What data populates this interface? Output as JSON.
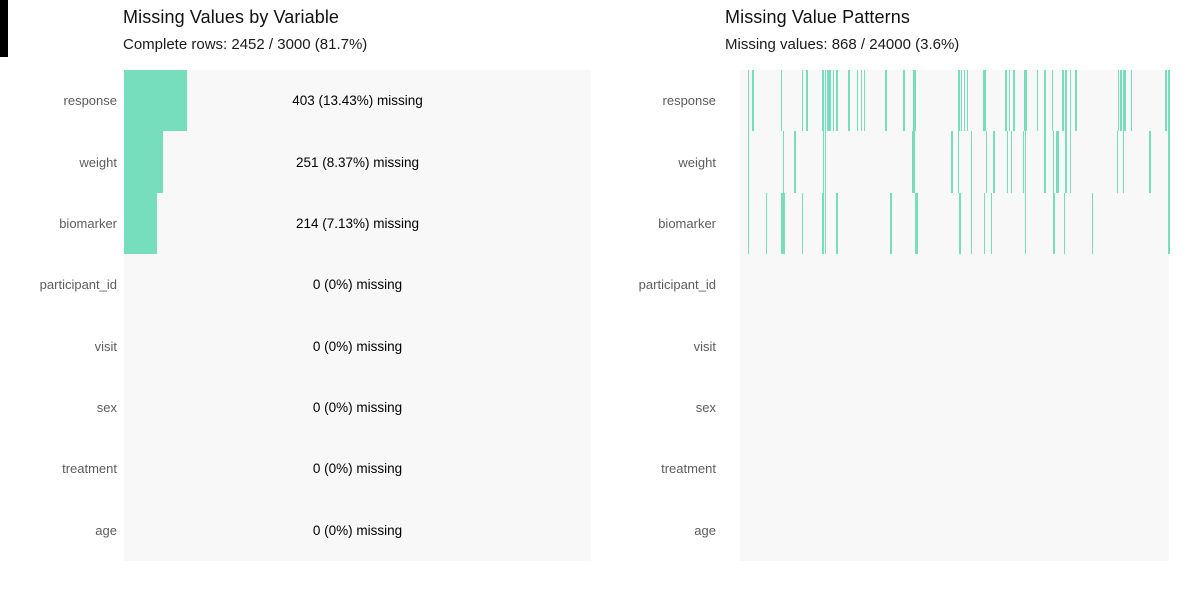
{
  "colors": {
    "accent_teal": "#77debd",
    "plot_background": "#f8f8f8",
    "row_label_gray": "#5c5c5c",
    "title_black": "#111111",
    "artifact_black": "#000000"
  },
  "left_panel": {
    "title": "Missing Values by Variable",
    "subtitle": "Complete rows: 2452 / 3000 (81.7%)"
  },
  "right_panel": {
    "title": "Missing Value Patterns",
    "subtitle": "Missing values: 868 / 24000 (3.6%)"
  },
  "chart_data": [
    {
      "type": "bar",
      "orientation": "horizontal",
      "title": "Missing Values by Variable",
      "subtitle": "Complete rows: 2452 / 3000 (81.7%)",
      "categories": [
        "response",
        "weight",
        "biomarker",
        "participant_id",
        "visit",
        "sex",
        "treatment",
        "age"
      ],
      "missing_counts": [
        403,
        251,
        214,
        0,
        0,
        0,
        0,
        0
      ],
      "missing_pct": [
        13.43,
        8.37,
        7.13,
        0,
        0,
        0,
        0,
        0
      ],
      "bar_labels": [
        "403 (13.43%) missing",
        "251 (8.37%) missing",
        "214 (7.13%) missing",
        "0 (0%) missing",
        "0 (0%) missing",
        "0 (0%) missing",
        "0 (0%) missing",
        "0 (0%) missing"
      ],
      "xlim_pct": [
        0,
        100
      ],
      "total_rows": 3000,
      "complete_rows": 2452,
      "grid": false,
      "legend": false
    },
    {
      "type": "heatmap",
      "title": "Missing Value Patterns",
      "subtitle": "Missing values: 868 / 24000 (3.6%)",
      "rows": [
        "response",
        "weight",
        "biomarker",
        "participant_id",
        "visit",
        "sex",
        "treatment",
        "age"
      ],
      "total_cells": 24000,
      "missing_cells": 868,
      "missing_line_positions": {
        "response": {
          "lines": [
            0.018,
            0.029,
            0.095,
            0.144,
            0.155,
            0.192,
            0.197,
            0.203,
            0.208,
            0.216,
            0.224,
            0.252,
            0.272,
            0.281,
            0.289,
            0.338,
            0.381,
            0.509,
            0.514,
            0.522,
            0.528,
            0.618,
            0.626,
            0.637,
            0.692,
            0.709,
            0.727,
            0.751,
            0.758,
            0.769,
            0.781,
            0.88,
            0.886,
            0.911,
            0.991,
            0.998
          ],
          "thick": [
            0.406,
            0.568,
            0.664,
            0.896
          ]
        },
        "weight": {
          "lines": [
            0.018,
            0.1,
            0.127,
            0.193,
            0.198,
            0.493,
            0.507,
            0.538,
            0.573,
            0.59,
            0.622,
            0.631,
            0.659,
            0.664,
            0.709,
            0.729,
            0.737,
            0.741,
            0.758,
            0.769,
            0.878,
            0.892,
            0.954,
            0.998
          ],
          "thick": [
            0.403
          ]
        },
        "biomarker": {
          "lines": [
            0.018,
            0.06,
            0.096,
            0.101,
            0.144,
            0.192,
            0.197,
            0.224,
            0.35,
            0.511,
            0.538,
            0.568,
            0.584,
            0.664,
            0.73,
            0.755,
            0.82,
            0.998
          ],
          "thick": [
            0.41
          ]
        },
        "participant_id": {
          "lines": [],
          "thick": []
        },
        "visit": {
          "lines": [],
          "thick": []
        },
        "sex": {
          "lines": [],
          "thick": []
        },
        "treatment": {
          "lines": [],
          "thick": []
        },
        "age": {
          "lines": [],
          "thick": []
        }
      },
      "grid": false,
      "legend": false
    }
  ]
}
